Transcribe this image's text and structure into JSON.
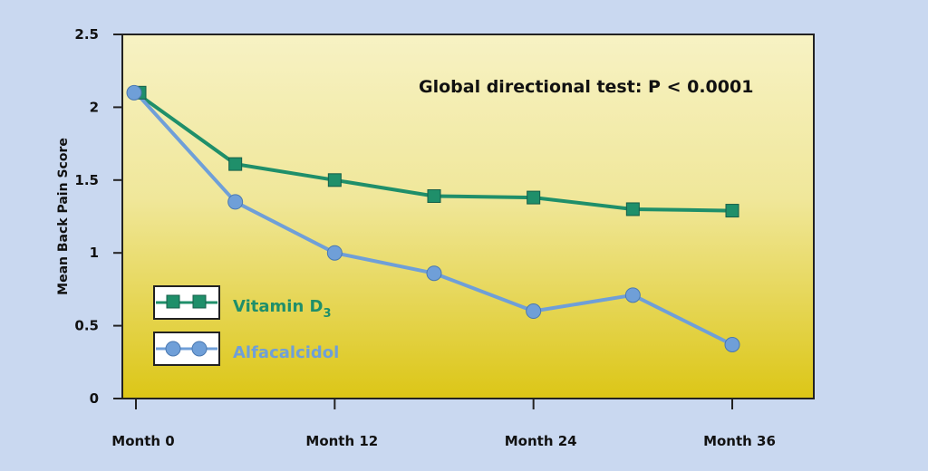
{
  "chart_data": {
    "type": "line",
    "title": "",
    "xlabel": "",
    "ylabel": "Mean Back Pain Score",
    "ylim": [
      0,
      2.5
    ],
    "yticks": [
      0,
      0.5,
      1,
      1.5,
      2,
      2.5
    ],
    "ytick_labels": [
      "0",
      "0.5",
      "1",
      "1.5",
      "2",
      "2.5"
    ],
    "xlim": [
      0,
      36
    ],
    "xticks": [
      0,
      12,
      24,
      36
    ],
    "xtick_labels": [
      "Month 0",
      "Month 12",
      "Month 24",
      "Month 36"
    ],
    "x": [
      0,
      6,
      12,
      18,
      24,
      30,
      36
    ],
    "series": [
      {
        "name": "Vitamin D",
        "subscript": "3",
        "color": "#1f8f6a",
        "marker": "square",
        "values": [
          2.1,
          1.61,
          1.5,
          1.39,
          1.38,
          1.3,
          1.29
        ]
      },
      {
        "name": "Alfacalcidol",
        "color": "#6f9fd8",
        "marker": "circle",
        "values": [
          2.1,
          1.35,
          1.0,
          0.86,
          0.6,
          0.71,
          0.37
        ]
      }
    ],
    "annotation": "Global directional test: P < 0.0001",
    "legend_position": "bottom-left",
    "grid": false,
    "plot_background": [
      "#f7f2c4",
      "#dcc616"
    ]
  }
}
